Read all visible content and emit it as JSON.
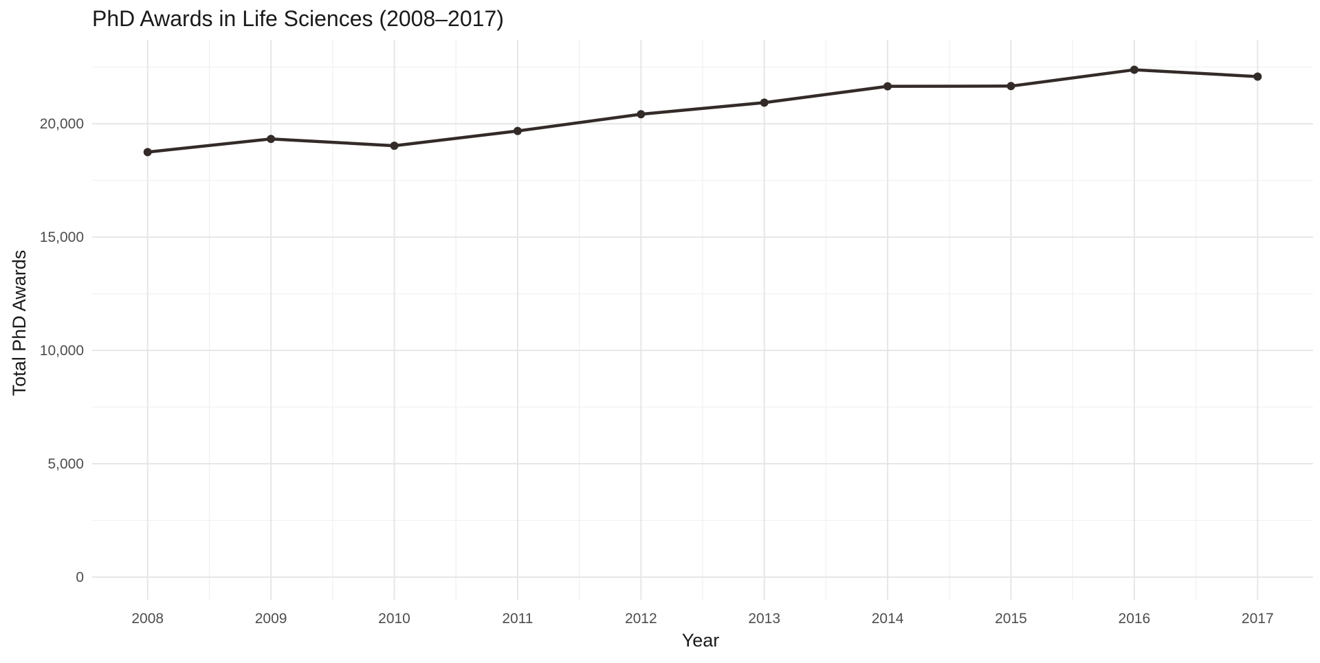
{
  "chart_data": {
    "type": "line",
    "title": "PhD Awards in Life Sciences (2008–2017)",
    "xlabel": "Year",
    "ylabel": "Total PhD Awards",
    "x": [
      2008,
      2009,
      2010,
      2011,
      2012,
      2013,
      2014,
      2015,
      2016,
      2017
    ],
    "series": [
      {
        "values": [
          18750,
          19330,
          19030,
          19680,
          20420,
          20930,
          21650,
          21660,
          22380,
          22080
        ]
      }
    ],
    "xlim": [
      2007.55,
      2017.45
    ],
    "ylim": [
      -1000,
      23700
    ],
    "y_ticks": [
      0,
      5000,
      10000,
      15000,
      20000
    ],
    "y_tick_labels": [
      "0",
      "5,000",
      "10,000",
      "15,000",
      "20,000"
    ],
    "x_tick_labels": [
      "2008",
      "2009",
      "2010",
      "2011",
      "2012",
      "2013",
      "2014",
      "2015",
      "2016",
      "2017"
    ],
    "grid": true,
    "legend": "none",
    "colors": {
      "line": "#332b28",
      "grid_major": "#e6e6e6",
      "grid_minor": "#f1f1f1",
      "tick_text": "#4d4d4d",
      "title_text": "#1a1a1a"
    }
  }
}
